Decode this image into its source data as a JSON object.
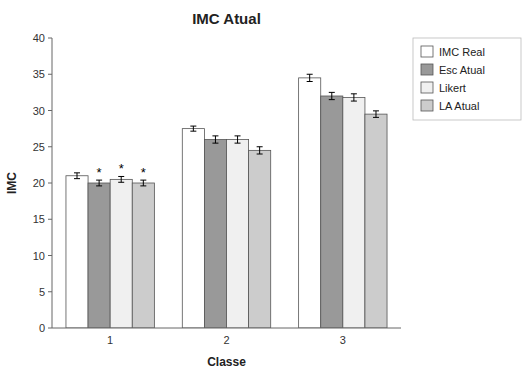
{
  "chart_data": {
    "type": "bar",
    "title": "IMC Atual",
    "x_label": "Classe",
    "y_label": "IMC",
    "categories": [
      "1",
      "2",
      "3"
    ],
    "series": [
      {
        "name": "IMC Real",
        "color": "#ffffff",
        "values": [
          21.0,
          27.5,
          34.5
        ],
        "errors": [
          0.4,
          0.35,
          0.5
        ]
      },
      {
        "name": "Esc Atual",
        "color": "#999999",
        "values": [
          20.0,
          26.0,
          32.0
        ],
        "errors": [
          0.4,
          0.5,
          0.5
        ]
      },
      {
        "name": "Likert",
        "color": "#f0f0f0",
        "values": [
          20.5,
          26.0,
          31.8
        ],
        "errors": [
          0.4,
          0.5,
          0.5
        ]
      },
      {
        "name": "LA Atual",
        "color": "#cccccc",
        "values": [
          20.0,
          24.5,
          29.5
        ],
        "errors": [
          0.4,
          0.5,
          0.45
        ]
      }
    ],
    "annotations": [
      {
        "text": "*",
        "series": 1,
        "category": 0
      },
      {
        "text": "*",
        "series": 2,
        "category": 0
      },
      {
        "text": "*",
        "series": 3,
        "category": 0
      }
    ],
    "ylim": [
      0,
      40
    ],
    "yticks": [
      0,
      5,
      10,
      15,
      20,
      25,
      30,
      35,
      40
    ],
    "grid": false,
    "legend": "right"
  }
}
